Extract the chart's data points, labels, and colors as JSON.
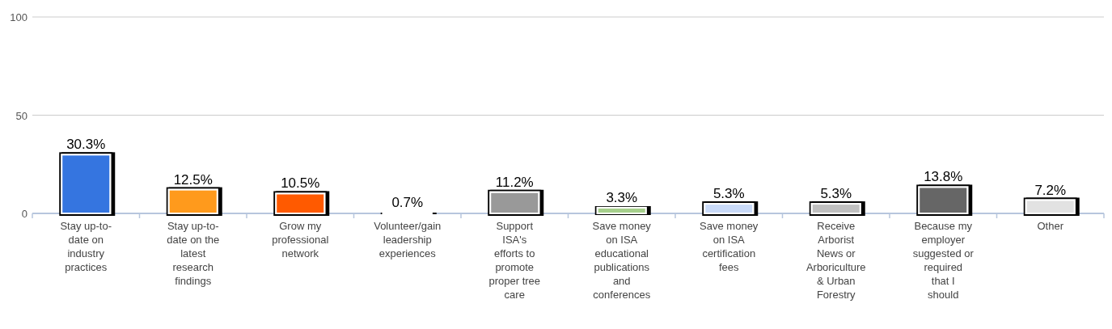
{
  "chart_data": {
    "type": "bar",
    "categories": [
      "Stay up-to-date on industry practices",
      "Stay up-to-date on the latest research findings",
      "Grow my professional network",
      "Volunteer/gain leadership experiences",
      "Support ISA's efforts to promote proper tree care",
      "Save money on ISA educational publications and conferences",
      "Save money on ISA certification fees",
      "Receive Arborist News or Arboriculture & Urban Forestry",
      "Because my employer suggested or required that I should",
      "Other"
    ],
    "values": [
      30.3,
      12.5,
      10.5,
      0.7,
      11.2,
      3.3,
      5.3,
      5.3,
      13.8,
      7.2
    ],
    "colors": [
      "#3574e0",
      "#ff9a1f",
      "#ff5a00",
      "#109618",
      "#999999",
      "#a6cf8c",
      "#c9daf8",
      "#c0c0c0",
      "#666666",
      "#e2e2e2"
    ],
    "value_labels": [
      "30.3%",
      "12.5%",
      "10.5%",
      "0.7%",
      "11.2%",
      "3.3%",
      "5.3%",
      "5.3%",
      "13.8%",
      "7.2%"
    ],
    "ylim": [
      0,
      100
    ],
    "yticks": [
      0,
      50,
      100
    ],
    "grid": "y"
  }
}
